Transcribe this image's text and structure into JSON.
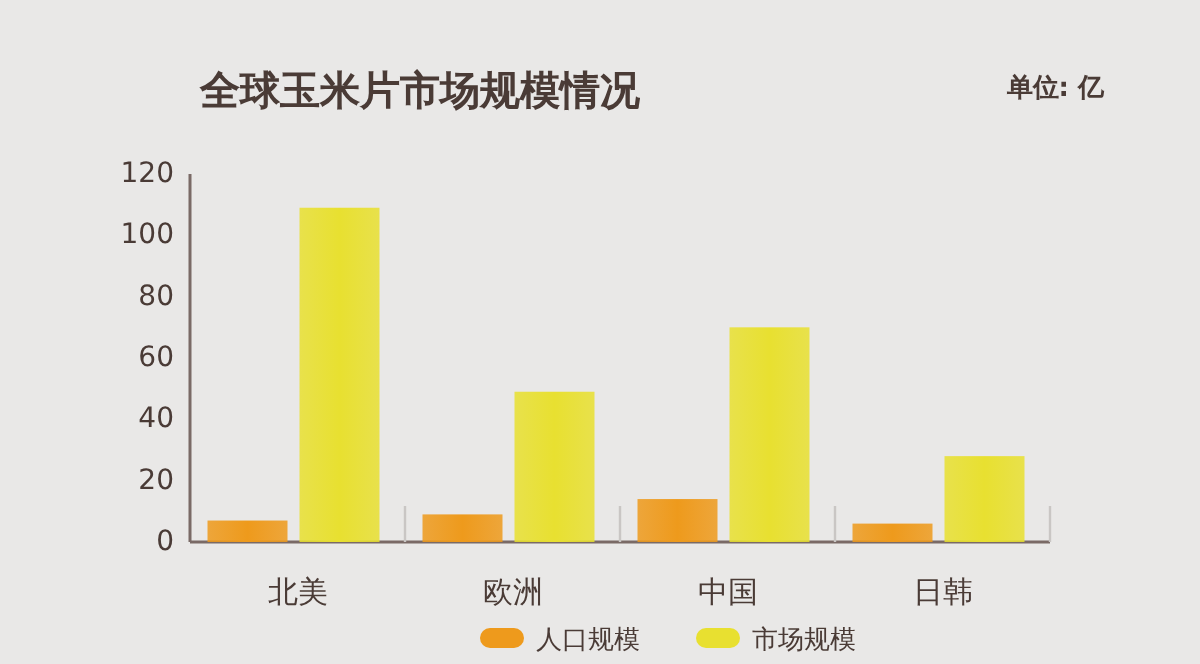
{
  "chart_data": {
    "type": "bar",
    "title": "全球玉米片市场规模情况",
    "annotations": [
      "单位: 亿"
    ],
    "categories": [
      "北美",
      "欧洲",
      "中国",
      "日韩"
    ],
    "series": [
      {
        "name": "人口规模",
        "color": "#ee9a1c",
        "values": [
          7,
          9,
          14,
          6
        ]
      },
      {
        "name": "市场规模",
        "color": "#e8e030",
        "values": [
          109,
          49,
          70,
          28
        ]
      }
    ],
    "ylim": [
      0,
      120
    ],
    "yticks": [
      0,
      20,
      40,
      60,
      80,
      100,
      120
    ],
    "legend": "bottom"
  }
}
